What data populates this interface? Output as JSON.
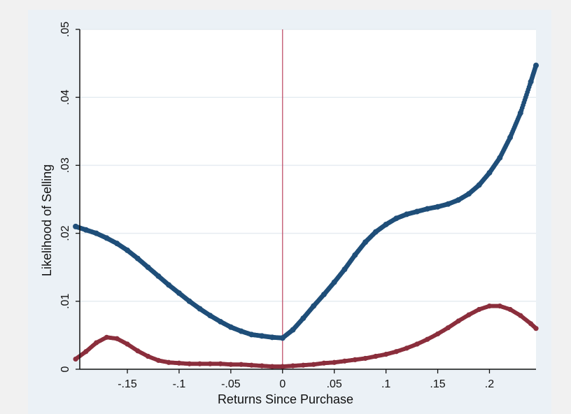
{
  "chart_data": {
    "type": "scatter",
    "title": "",
    "xlabel": "Returns Since Purchase",
    "ylabel": "Likelihood of Selling",
    "xlim": [
      -0.196,
      0.245
    ],
    "ylim": [
      0,
      0.05
    ],
    "x_ticks": [
      {
        "value": -0.15,
        "label": "-.15"
      },
      {
        "value": -0.1,
        "label": "-.1"
      },
      {
        "value": -0.05,
        "label": "-.05"
      },
      {
        "value": 0,
        "label": "0"
      },
      {
        "value": 0.05,
        "label": ".05"
      },
      {
        "value": 0.1,
        "label": ".1"
      },
      {
        "value": 0.15,
        "label": ".15"
      },
      {
        "value": 0.2,
        "label": ".2"
      }
    ],
    "y_ticks": [
      {
        "value": 0,
        "label": "0"
      },
      {
        "value": 0.01,
        "label": ".01"
      },
      {
        "value": 0.02,
        "label": ".02"
      },
      {
        "value": 0.03,
        "label": ".03"
      },
      {
        "value": 0.04,
        "label": ".04"
      },
      {
        "value": 0.05,
        "label": ".05"
      }
    ],
    "grid": true,
    "reference_line_x": 0,
    "colors": {
      "series_1": "#1f4e79",
      "series_2": "#8b2e3c",
      "reference_line": "#c0506a",
      "grid": "#ffffff",
      "plot_background": "#ffffff"
    },
    "series": [
      {
        "x": [
          -0.2,
          -0.19,
          -0.18,
          -0.17,
          -0.16,
          -0.15,
          -0.14,
          -0.13,
          -0.12,
          -0.11,
          -0.1,
          -0.09,
          -0.08,
          -0.07,
          -0.06,
          -0.05,
          -0.04,
          -0.03,
          -0.02,
          -0.01,
          0
        ],
        "y": [
          0.021,
          0.0205,
          0.02,
          0.0193,
          0.0185,
          0.0175,
          0.0163,
          0.015,
          0.0137,
          0.0124,
          0.0112,
          0.01,
          0.0089,
          0.0079,
          0.007,
          0.0062,
          0.0056,
          0.0051,
          0.0049,
          0.0047,
          0.0046
        ]
      },
      {
        "x": [
          0,
          0.01,
          0.02,
          0.03,
          0.04,
          0.05,
          0.06,
          0.07,
          0.08,
          0.09,
          0.1,
          0.11,
          0.12,
          0.13,
          0.14,
          0.15,
          0.16,
          0.17,
          0.18,
          0.19,
          0.2,
          0.21,
          0.22,
          0.23,
          0.24,
          0.245
        ],
        "y": [
          0.0046,
          0.0058,
          0.0075,
          0.0093,
          0.011,
          0.0128,
          0.0147,
          0.0168,
          0.0187,
          0.0202,
          0.0213,
          0.0222,
          0.0228,
          0.0232,
          0.0236,
          0.0239,
          0.0243,
          0.0249,
          0.0258,
          0.0271,
          0.0289,
          0.0311,
          0.0341,
          0.0377,
          0.0423,
          0.0447
        ]
      },
      {
        "x": [
          -0.2,
          -0.19,
          -0.18,
          -0.17,
          -0.16,
          -0.15,
          -0.14,
          -0.13,
          -0.12,
          -0.11,
          -0.1,
          -0.09,
          -0.08,
          -0.07,
          -0.06,
          -0.05,
          -0.04,
          -0.03,
          -0.02,
          -0.01,
          0,
          0.01,
          0.02,
          0.03,
          0.04,
          0.05,
          0.06,
          0.07,
          0.08,
          0.09,
          0.1,
          0.11,
          0.12,
          0.13,
          0.14,
          0.15,
          0.16,
          0.17,
          0.18,
          0.19,
          0.2,
          0.21,
          0.22,
          0.23,
          0.24,
          0.245
        ],
        "y": [
          0.0015,
          0.0026,
          0.0039,
          0.0047,
          0.0045,
          0.0037,
          0.0027,
          0.0019,
          0.0013,
          0.001,
          0.0009,
          0.0008,
          0.0008,
          0.0008,
          0.0008,
          0.0007,
          0.0007,
          0.0006,
          0.0005,
          0.0004,
          0.0004,
          0.0005,
          0.0006,
          0.0007,
          0.0009,
          0.001,
          0.0012,
          0.0014,
          0.0016,
          0.0019,
          0.0022,
          0.0026,
          0.0031,
          0.0037,
          0.0044,
          0.0052,
          0.0061,
          0.0071,
          0.008,
          0.0088,
          0.0093,
          0.0093,
          0.0088,
          0.0079,
          0.0067,
          0.006
        ]
      }
    ]
  }
}
